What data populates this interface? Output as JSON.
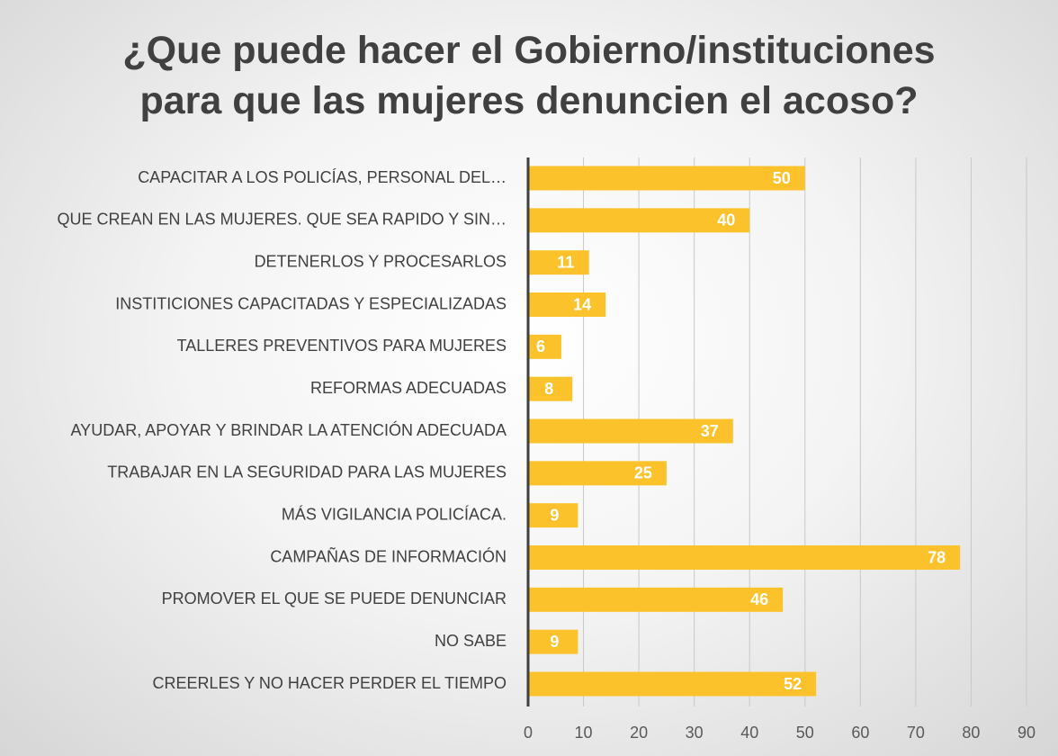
{
  "chart_data": {
    "type": "bar",
    "orientation": "horizontal",
    "title": "¿Que puede hacer el Gobierno/instituciones\npara que las mujeres denuncien el acoso?",
    "categories": [
      "CAPACITAR A LOS POLICÍAS, PERSONAL DEL…",
      "QUE CREAN EN LAS MUJERES. QUE SEA RAPIDO Y SIN…",
      "DETENERLOS Y PROCESARLOS",
      "INSTITICIONES CAPACITADAS Y ESPECIALIZADAS",
      "TALLERES PREVENTIVOS PARA MUJERES",
      "REFORMAS ADECUADAS",
      "AYUDAR, APOYAR Y BRINDAR LA ATENCIÓN ADECUADA",
      "TRABAJAR EN LA SEGURIDAD PARA LAS MUJERES",
      "MÁS VIGILANCIA POLICÍACA.",
      "CAMPAÑAS DE INFORMACIÓN",
      "PROMOVER EL QUE SE PUEDE DENUNCIAR",
      "NO SABE",
      "CREERLES Y NO HACER PERDER EL TIEMPO"
    ],
    "values": [
      50,
      40,
      11,
      14,
      6,
      8,
      37,
      25,
      9,
      78,
      46,
      9,
      52
    ],
    "color": "#fcc22b",
    "xlim": [
      0,
      90
    ],
    "xticks": [
      0,
      10,
      20,
      30,
      40,
      50,
      60,
      70,
      80,
      90
    ],
    "grid": true
  }
}
